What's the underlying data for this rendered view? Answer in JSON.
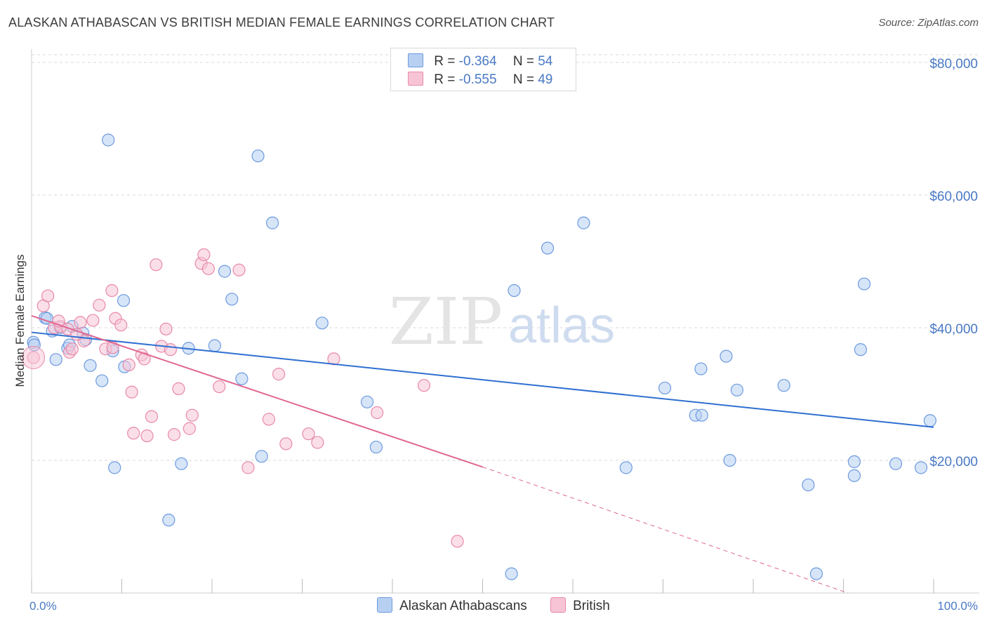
{
  "header": {
    "title": "ALASKAN ATHABASCAN VS BRITISH MEDIAN FEMALE EARNINGS CORRELATION CHART",
    "source": "Source: ZipAtlas.com"
  },
  "watermark": {
    "zip": "ZIP",
    "atlas": "atlas"
  },
  "legend": {
    "rows": [
      {
        "r_label": "R =",
        "r_value": "-0.364",
        "n_label": "N =",
        "n_value": "54"
      },
      {
        "r_label": "R =",
        "r_value": "-0.555",
        "n_label": "N =",
        "n_value": "49"
      }
    ]
  },
  "colors": {
    "blue_fill": "#b7d0f2",
    "blue_stroke": "#6d9be0",
    "blue_line": "#2f6fd1",
    "pink_fill": "#f7c4d6",
    "pink_stroke": "#e889aa",
    "pink_line": "#e0678f",
    "grid": "#d9d9d9",
    "axis_text": "#4a79c4"
  },
  "chart_data": {
    "type": "scatter",
    "xlabel": "",
    "ylabel": "Median Female Earnings",
    "xlim": [
      0,
      100
    ],
    "ylim": [
      0,
      82000
    ],
    "x_tick_labels": [
      "0.0%",
      "100.0%"
    ],
    "y_ticks": [
      20000,
      40000,
      60000,
      80000
    ],
    "y_tick_labels": [
      "$20,000",
      "$40,000",
      "$60,000",
      "$80,000"
    ],
    "grid": true,
    "legend_position": "top-center",
    "series": [
      {
        "name": "Alaskan Athabascans",
        "color": "#6d9be0",
        "points": [
          [
            0.2,
            37800
          ],
          [
            1.5,
            41500
          ],
          [
            1.7,
            41400
          ],
          [
            2.3,
            39500
          ],
          [
            2.7,
            35200
          ],
          [
            3.2,
            40000
          ],
          [
            4.0,
            36900
          ],
          [
            4.2,
            37400
          ],
          [
            4.5,
            40200
          ],
          [
            5.7,
            39200
          ],
          [
            6.0,
            38200
          ],
          [
            6.5,
            34300
          ],
          [
            7.8,
            32000
          ],
          [
            8.5,
            68300
          ],
          [
            9.0,
            36500
          ],
          [
            9.2,
            18900
          ],
          [
            10.2,
            44100
          ],
          [
            10.3,
            34100
          ],
          [
            15.2,
            11000
          ],
          [
            16.6,
            19500
          ],
          [
            17.4,
            36900
          ],
          [
            20.3,
            37300
          ],
          [
            21.4,
            48500
          ],
          [
            22.2,
            44300
          ],
          [
            23.3,
            32300
          ],
          [
            25.1,
            65900
          ],
          [
            25.5,
            20600
          ],
          [
            26.7,
            55800
          ],
          [
            32.2,
            40700
          ],
          [
            37.2,
            28800
          ],
          [
            38.2,
            22000
          ],
          [
            53.2,
            2900
          ],
          [
            53.5,
            45600
          ],
          [
            57.2,
            52000
          ],
          [
            61.2,
            55800
          ],
          [
            65.9,
            18900
          ],
          [
            70.2,
            30900
          ],
          [
            73.6,
            26800
          ],
          [
            74.2,
            33800
          ],
          [
            74.3,
            26800
          ],
          [
            77.0,
            35700
          ],
          [
            77.4,
            20000
          ],
          [
            78.2,
            30600
          ],
          [
            83.4,
            31300
          ],
          [
            87.0,
            2900
          ],
          [
            86.1,
            16300
          ],
          [
            91.2,
            17700
          ],
          [
            91.9,
            36700
          ],
          [
            92.3,
            46600
          ],
          [
            91.2,
            19800
          ],
          [
            98.6,
            18900
          ],
          [
            99.6,
            26000
          ],
          [
            95.8,
            19500
          ],
          [
            0.3,
            37400
          ]
        ]
      },
      {
        "name": "British",
        "color": "#e889aa",
        "points": [
          [
            0.2,
            35500
          ],
          [
            1.3,
            43300
          ],
          [
            1.8,
            44800
          ],
          [
            2.5,
            40000
          ],
          [
            3.2,
            40200
          ],
          [
            4.2,
            36300
          ],
          [
            4.5,
            36800
          ],
          [
            4.0,
            39800
          ],
          [
            5.4,
            40800
          ],
          [
            5.8,
            38000
          ],
          [
            6.8,
            41100
          ],
          [
            7.5,
            43400
          ],
          [
            8.2,
            36800
          ],
          [
            8.9,
            45600
          ],
          [
            9.3,
            41400
          ],
          [
            9.9,
            40400
          ],
          [
            10.8,
            34400
          ],
          [
            11.1,
            30300
          ],
          [
            11.3,
            24100
          ],
          [
            12.2,
            35900
          ],
          [
            12.5,
            35300
          ],
          [
            12.8,
            23700
          ],
          [
            13.3,
            26600
          ],
          [
            13.8,
            49500
          ],
          [
            14.4,
            37200
          ],
          [
            14.9,
            39800
          ],
          [
            15.4,
            36700
          ],
          [
            15.8,
            23900
          ],
          [
            16.3,
            30800
          ],
          [
            17.5,
            24800
          ],
          [
            17.8,
            26800
          ],
          [
            18.8,
            49700
          ],
          [
            19.1,
            51000
          ],
          [
            19.6,
            48900
          ],
          [
            20.8,
            31100
          ],
          [
            23.0,
            48700
          ],
          [
            24.0,
            18900
          ],
          [
            26.3,
            26200
          ],
          [
            27.4,
            33000
          ],
          [
            28.2,
            22500
          ],
          [
            30.7,
            24000
          ],
          [
            31.7,
            22700
          ],
          [
            33.5,
            35300
          ],
          [
            38.3,
            27200
          ],
          [
            43.5,
            31300
          ],
          [
            47.2,
            7800
          ],
          [
            5.0,
            39000
          ],
          [
            3.0,
            41000
          ],
          [
            9.0,
            37000
          ]
        ]
      }
    ],
    "trend_lines": [
      {
        "series": "Alaskan Athabascans",
        "from": [
          0,
          39300
        ],
        "to": [
          100,
          25000
        ],
        "style": "solid"
      },
      {
        "series": "British",
        "from": [
          0,
          41800
        ],
        "to": [
          50,
          19000
        ],
        "style": "solid"
      },
      {
        "series": "British",
        "from": [
          50,
          19000
        ],
        "to": [
          90.5,
          0
        ],
        "style": "dashed"
      }
    ]
  }
}
